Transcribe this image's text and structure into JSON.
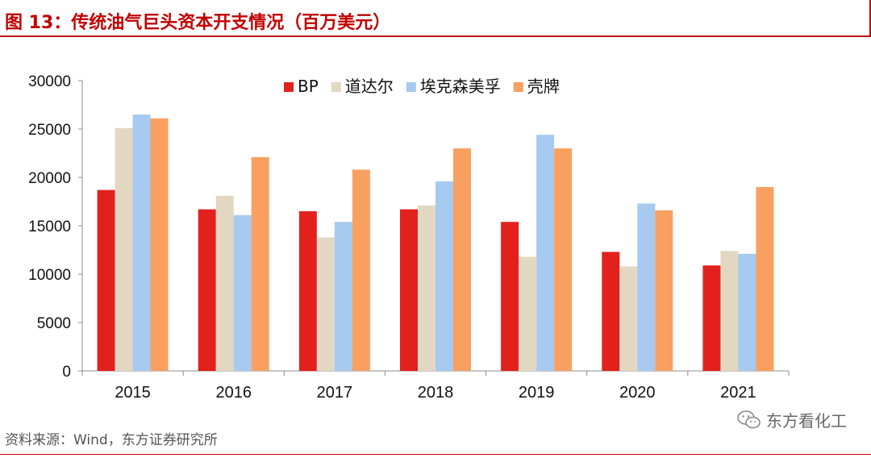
{
  "figure": {
    "title": "图 13：传统油气巨头资本开支情况（百万美元）",
    "source": "资料来源：Wind，东方证券研究所",
    "watermark": "东方看化工"
  },
  "chart_data": {
    "type": "bar",
    "title": "传统油气巨头资本开支情况（百万美元）",
    "xlabel": "",
    "ylabel": "",
    "categories": [
      "2015",
      "2016",
      "2017",
      "2018",
      "2019",
      "2020",
      "2021"
    ],
    "ylim": [
      0,
      30000
    ],
    "yticks": [
      0,
      5000,
      10000,
      15000,
      20000,
      25000,
      30000
    ],
    "grid": false,
    "legend_position": "top-center",
    "series": [
      {
        "name": "BP",
        "color": "#e3211c",
        "values": [
          18700,
          16700,
          16500,
          16700,
          15400,
          12300,
          10900
        ]
      },
      {
        "name": "道达尔",
        "color": "#e2d8c2",
        "values": [
          25100,
          18100,
          13800,
          17100,
          11800,
          10800,
          12400
        ]
      },
      {
        "name": "埃克森美孚",
        "color": "#a6caf0",
        "values": [
          26500,
          16100,
          15400,
          19600,
          24400,
          17300,
          12100
        ]
      },
      {
        "name": "壳牌",
        "color": "#f9a061",
        "values": [
          26100,
          22100,
          20800,
          23000,
          23000,
          16600,
          19000
        ]
      }
    ]
  }
}
